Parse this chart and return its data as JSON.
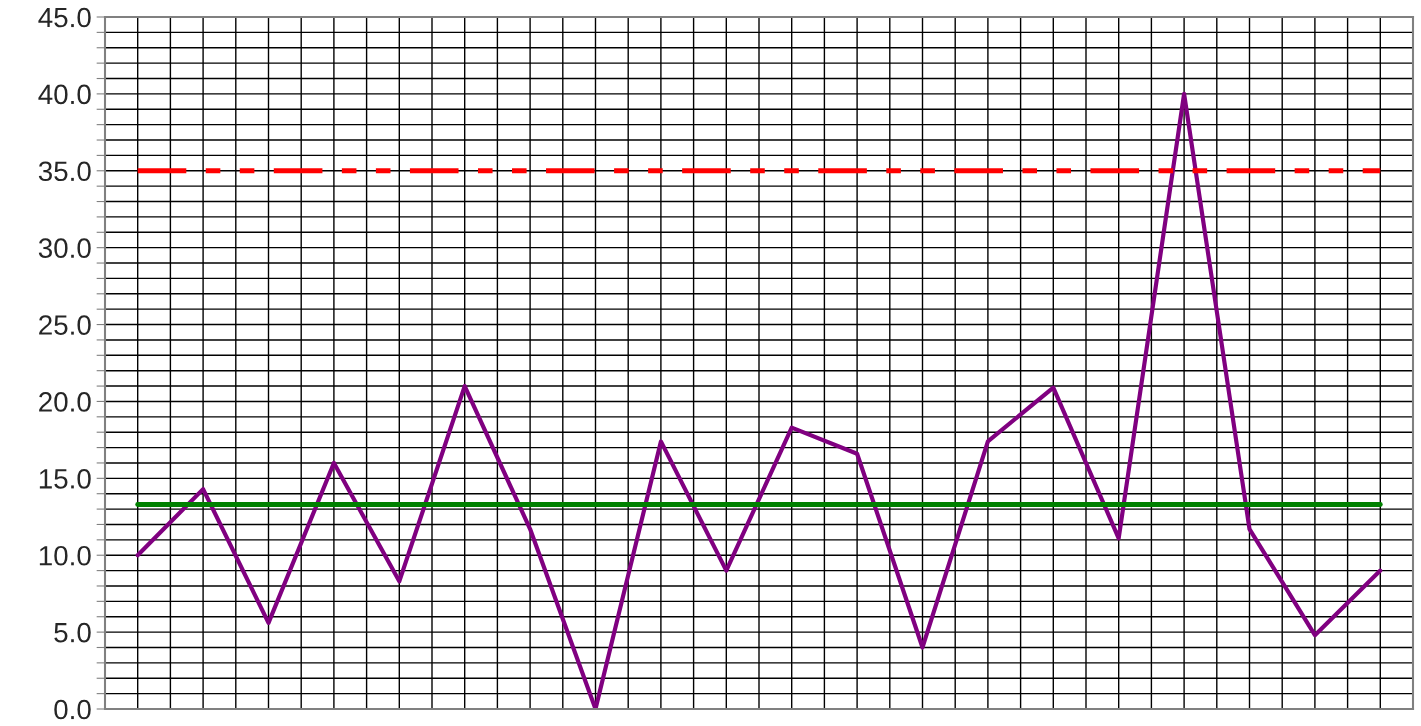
{
  "chart_data": {
    "type": "line",
    "categories": [
      null,
      null,
      null,
      null,
      null,
      null,
      null,
      null,
      null,
      null,
      null,
      null,
      null,
      null,
      null,
      null,
      null,
      null,
      null,
      null
    ],
    "series": [
      {
        "color": "#800080",
        "values": [
          10.0,
          14.3,
          5.6,
          16.0,
          8.3,
          21.0,
          11.7,
          0.0,
          17.4,
          9.0,
          18.3,
          16.6,
          4.0,
          17.4,
          20.9,
          11.1,
          40.0,
          11.7,
          4.8,
          9.0
        ]
      }
    ],
    "ref_lines": [
      {
        "axis": "y",
        "value": 35.0,
        "color": "#ff0000",
        "line_style": "dashed"
      },
      {
        "axis": "y",
        "value": 13.3,
        "color": "#008000",
        "line_style": "solid"
      }
    ],
    "ylim": [
      0,
      45
    ],
    "yticks": [
      {
        "value": 0,
        "label": "0.0"
      },
      {
        "value": 1,
        "label": null
      },
      {
        "value": 2,
        "label": null
      },
      {
        "value": 3,
        "label": null
      },
      {
        "value": 4,
        "label": null
      },
      {
        "value": 5,
        "label": "5.0"
      },
      {
        "value": 6,
        "label": null
      },
      {
        "value": 7,
        "label": null
      },
      {
        "value": 8,
        "label": null
      },
      {
        "value": 9,
        "label": null
      },
      {
        "value": 10,
        "label": "10.0"
      },
      {
        "value": 11,
        "label": null
      },
      {
        "value": 12,
        "label": null
      },
      {
        "value": 13,
        "label": null
      },
      {
        "value": 14,
        "label": null
      },
      {
        "value": 15,
        "label": "15.0"
      },
      {
        "value": 16,
        "label": null
      },
      {
        "value": 17,
        "label": null
      },
      {
        "value": 18,
        "label": null
      },
      {
        "value": 19,
        "label": null
      },
      {
        "value": 20,
        "label": "20.0"
      },
      {
        "value": 21,
        "label": null
      },
      {
        "value": 22,
        "label": null
      },
      {
        "value": 23,
        "label": null
      },
      {
        "value": 24,
        "label": null
      },
      {
        "value": 25,
        "label": "25.0"
      },
      {
        "value": 26,
        "label": null
      },
      {
        "value": 27,
        "label": null
      },
      {
        "value": 28,
        "label": null
      },
      {
        "value": 29,
        "label": null
      },
      {
        "value": 30,
        "label": "30.0"
      },
      {
        "value": 31,
        "label": null
      },
      {
        "value": 32,
        "label": null
      },
      {
        "value": 33,
        "label": null
      },
      {
        "value": 34,
        "label": null
      },
      {
        "value": 35,
        "label": "35.0"
      },
      {
        "value": 36,
        "label": null
      },
      {
        "value": 37,
        "label": null
      },
      {
        "value": 38,
        "label": null
      },
      {
        "value": 39,
        "label": null
      },
      {
        "value": 40,
        "label": "40.0"
      },
      {
        "value": 41,
        "label": null
      },
      {
        "value": 42,
        "label": null
      },
      {
        "value": 43,
        "label": null
      },
      {
        "value": 44,
        "label": null
      },
      {
        "value": 45,
        "label": "45.0"
      }
    ],
    "grid": true,
    "marker": "none",
    "line_style": "solid"
  }
}
